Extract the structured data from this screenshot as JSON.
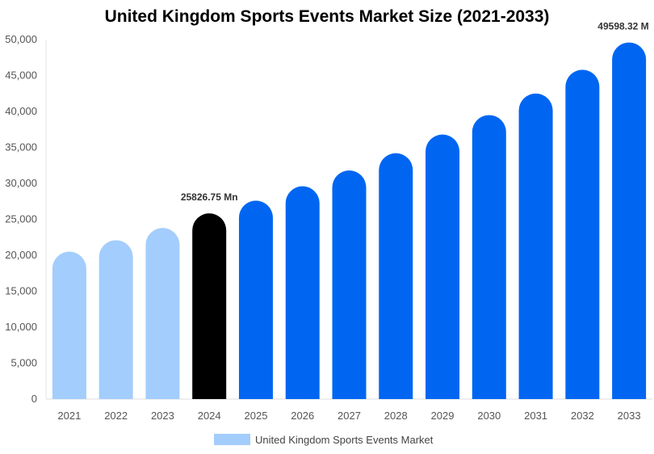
{
  "chart_data": {
    "type": "bar",
    "title": "United Kingdom Sports Events Market Size (2021-2033)",
    "xlabel": "",
    "ylabel": "",
    "categories": [
      "2021",
      "2022",
      "2023",
      "2024",
      "2025",
      "2026",
      "2027",
      "2028",
      "2029",
      "2030",
      "2031",
      "2032",
      "2033"
    ],
    "series": [
      {
        "name": "United Kingdom Sports Events Market",
        "values": [
          20500,
          22100,
          23800,
          25826.75,
          27600,
          29600,
          31800,
          34200,
          36800,
          39500,
          42500,
          45800,
          49598.32
        ]
      }
    ],
    "bar_colors": [
      "#a3cdfc",
      "#a3cdfc",
      "#a3cdfc",
      "#000000",
      "#0066f2",
      "#0066f2",
      "#0066f2",
      "#0066f2",
      "#0066f2",
      "#0066f2",
      "#0066f2",
      "#0066f2",
      "#0066f2"
    ],
    "legend_color": "#a3cdfc",
    "ylim": [
      0,
      50000
    ],
    "yticks": [
      "0",
      "5,000",
      "10,000",
      "15,000",
      "20,000",
      "25,000",
      "30,000",
      "35,000",
      "40,000",
      "45,000",
      "50,000"
    ],
    "ytick_values": [
      0,
      5000,
      10000,
      15000,
      20000,
      25000,
      30000,
      35000,
      40000,
      45000,
      50000
    ],
    "data_labels": [
      {
        "index": 3,
        "text": "25826.75 Mn"
      },
      {
        "index": 12,
        "text": "49598.32 M"
      }
    ],
    "grid": false,
    "legend_position": "bottom"
  }
}
